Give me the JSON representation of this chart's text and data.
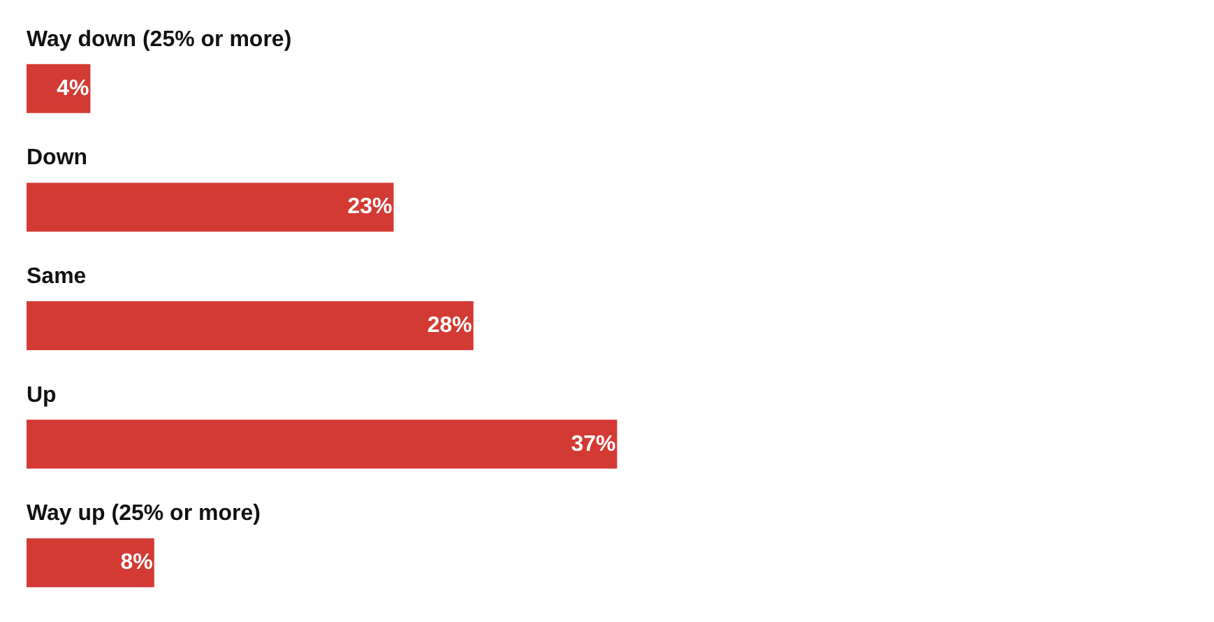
{
  "chart_data": {
    "type": "bar",
    "orientation": "horizontal",
    "categories": [
      "Way down (25% or more)",
      "Down",
      "Same",
      "Up",
      "Way up (25% or more)"
    ],
    "values": [
      4,
      23,
      28,
      37,
      8
    ],
    "value_labels": [
      "4%",
      "23%",
      "28%",
      "37%",
      "8%"
    ],
    "color": "#d33a33"
  }
}
